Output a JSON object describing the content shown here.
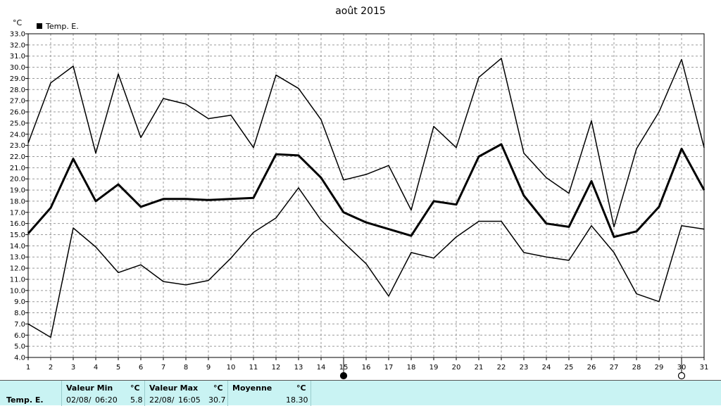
{
  "chart_data": {
    "type": "line",
    "title": "août 2015",
    "y_unit": "°C",
    "legend": {
      "label": "Temp. E.",
      "position": "top-left"
    },
    "grid": true,
    "ylim": [
      4.0,
      33.0
    ],
    "y_ticks": [
      "4.0",
      "5.0",
      "6.0",
      "7.0",
      "8.0",
      "9.0",
      "10.0",
      "11.0",
      "12.0",
      "13.0",
      "14.0",
      "15.0",
      "16.0",
      "17.0",
      "18.0",
      "19.0",
      "20.0",
      "21.0",
      "22.0",
      "23.0",
      "24.0",
      "25.0",
      "26.0",
      "27.0",
      "28.0",
      "29.0",
      "30.0",
      "31.0",
      "32.0",
      "33.0"
    ],
    "x": [
      1,
      2,
      3,
      4,
      5,
      6,
      7,
      8,
      9,
      10,
      11,
      12,
      13,
      14,
      15,
      16,
      17,
      18,
      19,
      20,
      21,
      22,
      23,
      24,
      25,
      26,
      27,
      28,
      29,
      30,
      31
    ],
    "series": [
      {
        "values": [
          23.2,
          28.6,
          30.1,
          22.3,
          29.4,
          23.7,
          27.2,
          26.7,
          25.4,
          25.7,
          22.8,
          29.3,
          28.1,
          25.3,
          19.9,
          20.4,
          21.2,
          17.2,
          24.7,
          22.8,
          29.1,
          30.8,
          22.3,
          20.1,
          18.7,
          25.2,
          15.7,
          22.7,
          26.0,
          30.7,
          22.8
        ],
        "width": 1.5
      },
      {
        "values": [
          15.1,
          17.4,
          21.8,
          18.0,
          19.5,
          17.5,
          18.2,
          18.2,
          18.1,
          18.2,
          18.3,
          22.2,
          22.1,
          20.1,
          17.0,
          16.1,
          15.5,
          14.9,
          18.0,
          17.7,
          22.0,
          23.1,
          18.5,
          16.0,
          15.7,
          19.8,
          14.8,
          15.3,
          17.5,
          22.7,
          19.0
        ],
        "width": 3
      },
      {
        "values": [
          7.0,
          5.8,
          15.6,
          13.9,
          11.6,
          12.3,
          10.8,
          10.5,
          10.9,
          12.9,
          15.2,
          16.5,
          19.2,
          16.3,
          14.3,
          12.4,
          9.5,
          13.4,
          12.9,
          14.8,
          16.2,
          16.2,
          13.4,
          13.0,
          12.7,
          15.8,
          13.4,
          9.7,
          9.0,
          15.8,
          15.5
        ],
        "width": 1.5
      }
    ],
    "moon_phases": [
      {
        "day": 15,
        "phase": "new-moon-icon"
      },
      {
        "day": 30,
        "phase": "full-moon-icon"
      }
    ],
    "colors": {
      "line": "#000000",
      "grid": "#9a9a9a",
      "footer_bg": "#c9f3f3"
    }
  },
  "summary": {
    "series_label": "Temp. E.",
    "min": {
      "label": "Valeur Min",
      "unit": "°C",
      "date": "02/08/",
      "time": "06:20",
      "value": "5.8"
    },
    "max": {
      "label": "Valeur Max",
      "unit": "°C",
      "date": "22/08/",
      "time": "16:05",
      "value": "30.7"
    },
    "avg": {
      "label": "Moyenne",
      "unit": "°C",
      "value": "18.30"
    }
  }
}
